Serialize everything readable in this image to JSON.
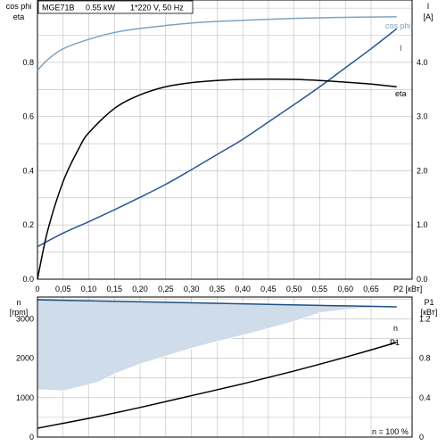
{
  "header": {
    "model": "MGE71B",
    "power": "0.55 kW",
    "supply": "1*220 V, 50 Hz"
  },
  "top_left_axis_labels": [
    "cos phi",
    "eta"
  ],
  "top_right_axis_labels": [
    "I",
    "[A]"
  ],
  "bottom_left_axis_labels": [
    "n",
    "[rpm]"
  ],
  "bottom_right_axis_labels": [
    "P1",
    "[кВт]"
  ],
  "x_axis_label": "P2 [кВт]",
  "note": "n = 100 %",
  "colors": {
    "cosphi": "#7fa3c0",
    "current": "#2a5590",
    "eta": "#000000",
    "speed": "#1f4f7f",
    "band_fill": "#cfdcea",
    "p1": "#000000"
  },
  "chart_data": [
    {
      "type": "line",
      "x": [
        0,
        0.05,
        0.1,
        0.15,
        0.2,
        0.25,
        0.3,
        0.35,
        0.4,
        0.45,
        0.5,
        0.55,
        0.6,
        0.65
      ],
      "x_tick_labels": [
        "0",
        "0,05",
        "0,10",
        "0,15",
        "0,20",
        "0,25",
        "0,30",
        "0,35",
        "0,40",
        "0,45",
        "0,50",
        "0,55",
        "0,60",
        "0,65"
      ],
      "xlabel": "P2 [кВт]",
      "xlim": [
        0,
        0.73
      ],
      "left_axis": {
        "labels": [
          "cos phi",
          "eta"
        ],
        "ylim": [
          0,
          1.03
        ],
        "ticks": [
          0,
          0.2,
          0.4,
          0.6,
          0.8
        ],
        "tick_labels": [
          "0.0",
          "0.2",
          "0.4",
          "0.6",
          "0.8"
        ]
      },
      "right_axis": {
        "labels": [
          "I",
          "[A]"
        ],
        "ylim": [
          0,
          5.15
        ],
        "ticks": [
          0,
          1,
          2,
          3,
          4
        ],
        "tick_labels": [
          "0.0",
          "1.0",
          "2.0",
          "3.0",
          "4.0"
        ]
      },
      "series": [
        {
          "name": "cos phi",
          "axis": "left",
          "x": [
            0,
            0.02,
            0.05,
            0.1,
            0.15,
            0.2,
            0.3,
            0.4,
            0.5,
            0.6,
            0.7
          ],
          "values": [
            0.77,
            0.81,
            0.85,
            0.885,
            0.91,
            0.925,
            0.945,
            0.955,
            0.962,
            0.966,
            0.968
          ]
        },
        {
          "name": "I",
          "axis": "right",
          "x": [
            0,
            0.05,
            0.1,
            0.15,
            0.2,
            0.25,
            0.3,
            0.35,
            0.4,
            0.45,
            0.5,
            0.55,
            0.6,
            0.65,
            0.7
          ],
          "values": [
            0.6,
            0.85,
            1.06,
            1.28,
            1.51,
            1.75,
            2.02,
            2.3,
            2.58,
            2.9,
            3.22,
            3.55,
            3.9,
            4.25,
            4.62
          ]
        },
        {
          "name": "eta",
          "axis": "left",
          "x": [
            0,
            0.02,
            0.05,
            0.08,
            0.1,
            0.15,
            0.2,
            0.25,
            0.3,
            0.35,
            0.4,
            0.45,
            0.5,
            0.55,
            0.6,
            0.65,
            0.7
          ],
          "values": [
            0,
            0.18,
            0.36,
            0.48,
            0.54,
            0.63,
            0.68,
            0.71,
            0.725,
            0.733,
            0.737,
            0.738,
            0.737,
            0.733,
            0.727,
            0.72,
            0.71
          ]
        }
      ]
    },
    {
      "type": "line",
      "x_ticks": [
        0,
        0.05,
        0.1,
        0.15,
        0.2,
        0.25,
        0.3,
        0.35,
        0.4,
        0.45,
        0.5,
        0.55,
        0.6,
        0.65
      ],
      "xlim": [
        0,
        0.73
      ],
      "left_axis": {
        "labels": [
          "n",
          "[rpm]"
        ],
        "ylim": [
          0,
          3550
        ],
        "ticks": [
          0,
          1000,
          2000,
          3000
        ],
        "tick_labels": [
          "0",
          "1000",
          "2000",
          "3000"
        ]
      },
      "right_axis": {
        "labels": [
          "P1",
          "[кВт]"
        ],
        "ylim": [
          0,
          1.42
        ],
        "ticks": [
          0,
          0.4,
          0.8,
          1.2
        ],
        "tick_labels": [
          "0",
          "0.4",
          "0.8",
          "1.2"
        ]
      },
      "series": [
        {
          "name": "n",
          "axis": "left",
          "x": [
            0,
            0.7
          ],
          "values": [
            3480,
            3300
          ]
        },
        {
          "name": "P1",
          "axis": "right",
          "x": [
            0,
            0.1,
            0.2,
            0.3,
            0.4,
            0.5,
            0.6,
            0.7
          ],
          "values": [
            0.09,
            0.19,
            0.3,
            0.42,
            0.54,
            0.67,
            0.81,
            0.96
          ]
        }
      ],
      "band": {
        "x": [
          0,
          0.05,
          0.1,
          0.12,
          0.15,
          0.2,
          0.25,
          0.3,
          0.35,
          0.4,
          0.45,
          0.5,
          0.55,
          0.6,
          0.65,
          0.7
        ],
        "lower": [
          1200,
          1170,
          1330,
          1400,
          1600,
          1850,
          2050,
          2250,
          2420,
          2580,
          2750,
          2930,
          3150,
          3230,
          3280,
          3300
        ],
        "upper": [
          3480,
          3467,
          3454,
          3449,
          3441,
          3429,
          3416,
          3403,
          3391,
          3377,
          3364,
          3351,
          3339,
          3326,
          3313,
          3300
        ]
      },
      "annotation": "n = 100 %"
    }
  ]
}
